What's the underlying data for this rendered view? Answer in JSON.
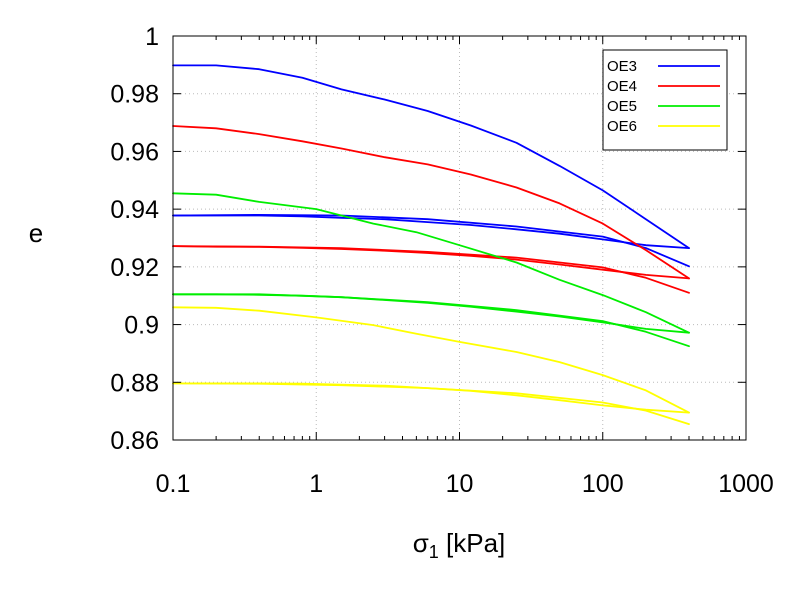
{
  "chart_data": {
    "type": "line",
    "title": "",
    "xlabel_symbol": "σ",
    "xlabel_sub": "1",
    "xlabel_unit": " [kPa]",
    "ylabel": "e",
    "xscale": "log",
    "xlim": [
      0.1,
      1000
    ],
    "ylim": [
      0.86,
      1.0
    ],
    "xticks": [
      0.1,
      1,
      10,
      100,
      1000
    ],
    "xtick_labels": [
      "0.1",
      "1",
      "10",
      "100",
      "1000"
    ],
    "yticks": [
      0.86,
      0.88,
      0.9,
      0.92,
      0.94,
      0.96,
      0.98,
      1.0
    ],
    "ytick_labels": [
      "0.86",
      "0.88",
      "0.9",
      "0.92",
      "0.94",
      "0.96",
      "0.98",
      "1"
    ],
    "grid": true,
    "legend_position": "top-right",
    "series": [
      {
        "name": "OE3",
        "color": "#0000ff",
        "loading": [
          [
            0.1,
            0.9898
          ],
          [
            0.2,
            0.9898
          ],
          [
            0.4,
            0.9885
          ],
          [
            0.8,
            0.9855
          ],
          [
            1.5,
            0.9815
          ],
          [
            3,
            0.978
          ],
          [
            6,
            0.974
          ],
          [
            12,
            0.969
          ],
          [
            25,
            0.963
          ],
          [
            50,
            0.955
          ],
          [
            100,
            0.9465
          ],
          [
            200,
            0.9365
          ],
          [
            400,
            0.9265
          ]
        ],
        "unloading": [
          [
            400,
            0.9265
          ],
          [
            200,
            0.9275
          ],
          [
            100,
            0.9295
          ],
          [
            50,
            0.9315
          ],
          [
            25,
            0.933
          ],
          [
            12,
            0.9345
          ],
          [
            6,
            0.9355
          ],
          [
            3,
            0.9365
          ],
          [
            1.5,
            0.937
          ],
          [
            0.8,
            0.9375
          ],
          [
            0.4,
            0.9378
          ],
          [
            0.2,
            0.9378
          ],
          [
            0.1,
            0.9378
          ]
        ],
        "reloading": [
          [
            0.1,
            0.9378
          ],
          [
            0.4,
            0.938
          ],
          [
            1.5,
            0.9378
          ],
          [
            6,
            0.9365
          ],
          [
            25,
            0.934
          ],
          [
            100,
            0.9305
          ],
          [
            200,
            0.9265
          ],
          [
            400,
            0.9202
          ]
        ]
      },
      {
        "name": "OE4",
        "color": "#ff0000",
        "loading": [
          [
            0.1,
            0.9688
          ],
          [
            0.2,
            0.968
          ],
          [
            0.4,
            0.966
          ],
          [
            0.8,
            0.9635
          ],
          [
            1.5,
            0.961
          ],
          [
            3,
            0.958
          ],
          [
            6,
            0.9555
          ],
          [
            12,
            0.952
          ],
          [
            25,
            0.9475
          ],
          [
            50,
            0.942
          ],
          [
            100,
            0.935
          ],
          [
            200,
            0.9258
          ],
          [
            400,
            0.916
          ]
        ],
        "unloading": [
          [
            400,
            0.916
          ],
          [
            200,
            0.9172
          ],
          [
            100,
            0.919
          ],
          [
            50,
            0.9208
          ],
          [
            25,
            0.9225
          ],
          [
            12,
            0.9238
          ],
          [
            6,
            0.9248
          ],
          [
            3,
            0.9256
          ],
          [
            1.5,
            0.9262
          ],
          [
            0.8,
            0.9266
          ],
          [
            0.4,
            0.9269
          ],
          [
            0.2,
            0.927
          ],
          [
            0.1,
            0.9272
          ]
        ],
        "reloading": [
          [
            0.1,
            0.9272
          ],
          [
            0.4,
            0.927
          ],
          [
            1.5,
            0.9265
          ],
          [
            6,
            0.9252
          ],
          [
            25,
            0.9232
          ],
          [
            100,
            0.9198
          ],
          [
            200,
            0.9162
          ],
          [
            400,
            0.911
          ]
        ]
      },
      {
        "name": "OE5",
        "color": "#00ee00",
        "loading": [
          [
            0.1,
            0.9455
          ],
          [
            0.2,
            0.945
          ],
          [
            0.4,
            0.9425
          ],
          [
            1,
            0.94
          ],
          [
            2.5,
            0.935
          ],
          [
            5,
            0.932
          ],
          [
            10,
            0.9275
          ],
          [
            25,
            0.9215
          ],
          [
            50,
            0.9155
          ],
          [
            100,
            0.9102
          ],
          [
            200,
            0.9043
          ],
          [
            400,
            0.8972
          ]
        ],
        "unloading": [
          [
            400,
            0.8972
          ],
          [
            200,
            0.8985
          ],
          [
            100,
            0.9008
          ],
          [
            50,
            0.9028
          ],
          [
            25,
            0.9045
          ],
          [
            12,
            0.9062
          ],
          [
            6,
            0.9075
          ],
          [
            3,
            0.9085
          ],
          [
            1.5,
            0.9095
          ],
          [
            0.8,
            0.91
          ],
          [
            0.4,
            0.9103
          ],
          [
            0.2,
            0.9105
          ],
          [
            0.1,
            0.9105
          ]
        ],
        "reloading": [
          [
            0.1,
            0.9105
          ],
          [
            0.4,
            0.9105
          ],
          [
            1.5,
            0.9095
          ],
          [
            6,
            0.9078
          ],
          [
            25,
            0.905
          ],
          [
            100,
            0.9012
          ],
          [
            200,
            0.8975
          ],
          [
            400,
            0.8925
          ]
        ]
      },
      {
        "name": "OE6",
        "color": "#ffff00",
        "loading": [
          [
            0.1,
            0.906
          ],
          [
            0.2,
            0.9058
          ],
          [
            0.4,
            0.9048
          ],
          [
            1,
            0.9025
          ],
          [
            2.5,
            0.8998
          ],
          [
            5,
            0.8968
          ],
          [
            10,
            0.894
          ],
          [
            25,
            0.8905
          ],
          [
            50,
            0.887
          ],
          [
            100,
            0.8825
          ],
          [
            200,
            0.8772
          ],
          [
            400,
            0.8695
          ]
        ],
        "unloading": [
          [
            400,
            0.8695
          ],
          [
            200,
            0.8705
          ],
          [
            100,
            0.872
          ],
          [
            50,
            0.8738
          ],
          [
            25,
            0.8755
          ],
          [
            12,
            0.877
          ],
          [
            6,
            0.878
          ],
          [
            3,
            0.8788
          ],
          [
            1.5,
            0.8792
          ],
          [
            0.8,
            0.8795
          ],
          [
            0.4,
            0.8796
          ],
          [
            0.2,
            0.8796
          ],
          [
            0.1,
            0.8796
          ]
        ],
        "reloading": [
          [
            0.1,
            0.8796
          ],
          [
            0.4,
            0.8795
          ],
          [
            1.5,
            0.879
          ],
          [
            6,
            0.878
          ],
          [
            25,
            0.8762
          ],
          [
            100,
            0.873
          ],
          [
            200,
            0.8702
          ],
          [
            400,
            0.8655
          ]
        ]
      }
    ]
  }
}
